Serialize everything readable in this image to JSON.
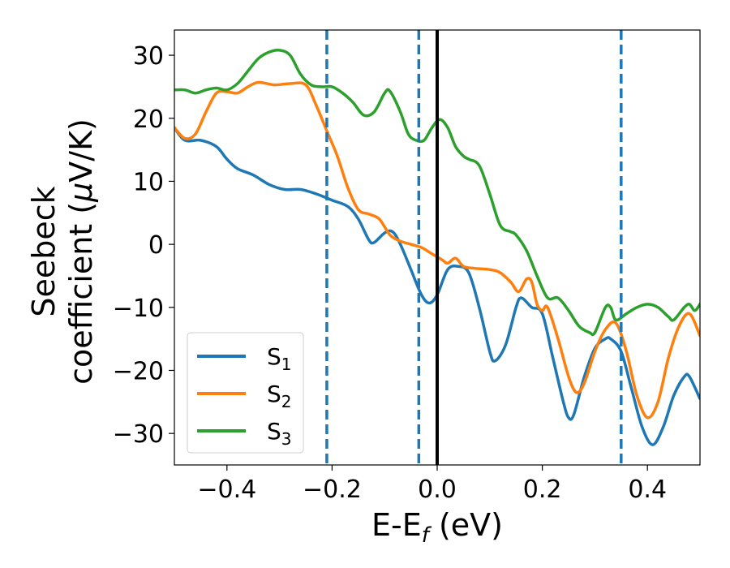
{
  "chart_data": {
    "type": "line",
    "xlabel": "E-E",
    "xlabel_sub": "f",
    "xlabel_unit": " (eV)",
    "ylabel_line1": "Seebeck",
    "ylabel_line2_pre": "coefficient  (",
    "ylabel_mu": "μ",
    "ylabel_line2_post": "V/K)",
    "xlim": [
      -0.5,
      0.5
    ],
    "ylim": [
      -35,
      34
    ],
    "x_ticks": [
      -0.4,
      -0.2,
      0.0,
      0.2,
      0.4
    ],
    "x_tick_labels": [
      "−0.4",
      "−0.2",
      "0.0",
      "0.2",
      "0.4"
    ],
    "y_ticks": [
      -30,
      -20,
      -10,
      0,
      10,
      20,
      30
    ],
    "y_tick_labels": [
      "−30",
      "−20",
      "−10",
      "0",
      "10",
      "20",
      "30"
    ],
    "grid": false,
    "legend_position": "lower-left",
    "vlines": [
      {
        "x": -0.21,
        "style": "dashed",
        "color": "#1f77b4"
      },
      {
        "x": -0.035,
        "style": "dashed",
        "color": "#1f77b4"
      },
      {
        "x": 0.0,
        "style": "solid",
        "color": "#000000"
      },
      {
        "x": 0.35,
        "style": "dashed",
        "color": "#1f77b4"
      }
    ],
    "series": [
      {
        "name": "S",
        "sub": "1",
        "color": "#1f77b4",
        "points": [
          [
            -0.5,
            18.5
          ],
          [
            -0.48,
            16.5
          ],
          [
            -0.45,
            16.5
          ],
          [
            -0.42,
            15.5
          ],
          [
            -0.4,
            13.5
          ],
          [
            -0.38,
            12
          ],
          [
            -0.35,
            11
          ],
          [
            -0.32,
            9.5
          ],
          [
            -0.29,
            8.7
          ],
          [
            -0.26,
            8.7
          ],
          [
            -0.23,
            8
          ],
          [
            -0.2,
            7
          ],
          [
            -0.17,
            6
          ],
          [
            -0.15,
            4
          ],
          [
            -0.13,
            0.7
          ],
          [
            -0.12,
            0.3
          ],
          [
            -0.1,
            1.8
          ],
          [
            -0.085,
            2
          ],
          [
            -0.07,
            0
          ],
          [
            -0.05,
            -4
          ],
          [
            -0.03,
            -8
          ],
          [
            -0.015,
            -9.3
          ],
          [
            0.0,
            -8
          ],
          [
            0.02,
            -4
          ],
          [
            0.04,
            -3.5
          ],
          [
            0.06,
            -4.5
          ],
          [
            0.08,
            -10
          ],
          [
            0.1,
            -17
          ],
          [
            0.11,
            -18.5
          ],
          [
            0.13,
            -16
          ],
          [
            0.15,
            -10
          ],
          [
            0.16,
            -8.5
          ],
          [
            0.18,
            -10
          ],
          [
            0.2,
            -11
          ],
          [
            0.22,
            -18
          ],
          [
            0.24,
            -25
          ],
          [
            0.25,
            -27.5
          ],
          [
            0.26,
            -27
          ],
          [
            0.28,
            -21
          ],
          [
            0.3,
            -16.5
          ],
          [
            0.32,
            -15
          ],
          [
            0.33,
            -15
          ],
          [
            0.35,
            -17
          ],
          [
            0.37,
            -23
          ],
          [
            0.39,
            -29
          ],
          [
            0.41,
            -31.8
          ],
          [
            0.43,
            -29
          ],
          [
            0.45,
            -24
          ],
          [
            0.47,
            -21
          ],
          [
            0.48,
            -21
          ],
          [
            0.5,
            -24.5
          ]
        ]
      },
      {
        "name": "S",
        "sub": "2",
        "color": "#ff7f0e",
        "points": [
          [
            -0.5,
            18.5
          ],
          [
            -0.48,
            16.8
          ],
          [
            -0.46,
            17.5
          ],
          [
            -0.44,
            21
          ],
          [
            -0.42,
            24
          ],
          [
            -0.4,
            24.2
          ],
          [
            -0.38,
            24
          ],
          [
            -0.36,
            25
          ],
          [
            -0.34,
            25.7
          ],
          [
            -0.31,
            25.3
          ],
          [
            -0.28,
            25.5
          ],
          [
            -0.25,
            25.3
          ],
          [
            -0.23,
            22
          ],
          [
            -0.21,
            18
          ],
          [
            -0.19,
            14
          ],
          [
            -0.17,
            9
          ],
          [
            -0.15,
            5.5
          ],
          [
            -0.13,
            4.8
          ],
          [
            -0.11,
            4
          ],
          [
            -0.09,
            1.5
          ],
          [
            -0.07,
            0.5
          ],
          [
            -0.05,
            0
          ],
          [
            -0.03,
            -0.5
          ],
          [
            -0.01,
            -1.5
          ],
          [
            0.01,
            -2.5
          ],
          [
            0.02,
            -3
          ],
          [
            0.035,
            -2.2
          ],
          [
            0.05,
            -3.5
          ],
          [
            0.07,
            -3.8
          ],
          [
            0.1,
            -4
          ],
          [
            0.12,
            -4.5
          ],
          [
            0.14,
            -6
          ],
          [
            0.155,
            -7.5
          ],
          [
            0.17,
            -5.5
          ],
          [
            0.18,
            -6
          ],
          [
            0.19,
            -9.5
          ],
          [
            0.2,
            -10.5
          ],
          [
            0.21,
            -10
          ],
          [
            0.23,
            -15
          ],
          [
            0.25,
            -21
          ],
          [
            0.265,
            -23.5
          ],
          [
            0.28,
            -22
          ],
          [
            0.3,
            -17
          ],
          [
            0.32,
            -13.5
          ],
          [
            0.34,
            -12.5
          ],
          [
            0.36,
            -17
          ],
          [
            0.38,
            -24
          ],
          [
            0.4,
            -27.5
          ],
          [
            0.42,
            -25
          ],
          [
            0.44,
            -18
          ],
          [
            0.46,
            -13
          ],
          [
            0.48,
            -11
          ],
          [
            0.5,
            -14.5
          ]
        ]
      },
      {
        "name": "S",
        "sub": "3",
        "color": "#2ca02c",
        "points": [
          [
            -0.5,
            24.5
          ],
          [
            -0.48,
            24.5
          ],
          [
            -0.46,
            24
          ],
          [
            -0.44,
            24.5
          ],
          [
            -0.42,
            24.8
          ],
          [
            -0.4,
            24.5
          ],
          [
            -0.38,
            25.5
          ],
          [
            -0.36,
            27.5
          ],
          [
            -0.34,
            29.5
          ],
          [
            -0.32,
            30.5
          ],
          [
            -0.3,
            30.8
          ],
          [
            -0.28,
            30
          ],
          [
            -0.26,
            27
          ],
          [
            -0.24,
            25.3
          ],
          [
            -0.22,
            25
          ],
          [
            -0.2,
            25
          ],
          [
            -0.18,
            24
          ],
          [
            -0.16,
            22.5
          ],
          [
            -0.14,
            20.5
          ],
          [
            -0.12,
            21
          ],
          [
            -0.1,
            24
          ],
          [
            -0.09,
            24.3
          ],
          [
            -0.07,
            21
          ],
          [
            -0.055,
            17.5
          ],
          [
            -0.04,
            16.5
          ],
          [
            -0.025,
            16.5
          ],
          [
            -0.01,
            18.5
          ],
          [
            0.005,
            19.8
          ],
          [
            0.02,
            18.5
          ],
          [
            0.035,
            15.5
          ],
          [
            0.05,
            14
          ],
          [
            0.06,
            13.5
          ],
          [
            0.08,
            12.5
          ],
          [
            0.1,
            8
          ],
          [
            0.12,
            3
          ],
          [
            0.14,
            2
          ],
          [
            0.15,
            1.5
          ],
          [
            0.17,
            -1
          ],
          [
            0.19,
            -5
          ],
          [
            0.21,
            -8.5
          ],
          [
            0.23,
            -8.5
          ],
          [
            0.25,
            -10.5
          ],
          [
            0.27,
            -13
          ],
          [
            0.29,
            -14
          ],
          [
            0.3,
            -14
          ],
          [
            0.32,
            -10
          ],
          [
            0.33,
            -10
          ],
          [
            0.34,
            -12
          ],
          [
            0.36,
            -11
          ],
          [
            0.38,
            -10
          ],
          [
            0.4,
            -9.5
          ],
          [
            0.42,
            -10
          ],
          [
            0.44,
            -11.5
          ],
          [
            0.45,
            -12
          ],
          [
            0.47,
            -10
          ],
          [
            0.48,
            -9.5
          ],
          [
            0.49,
            -10.5
          ],
          [
            0.5,
            -9.5
          ]
        ]
      }
    ]
  }
}
